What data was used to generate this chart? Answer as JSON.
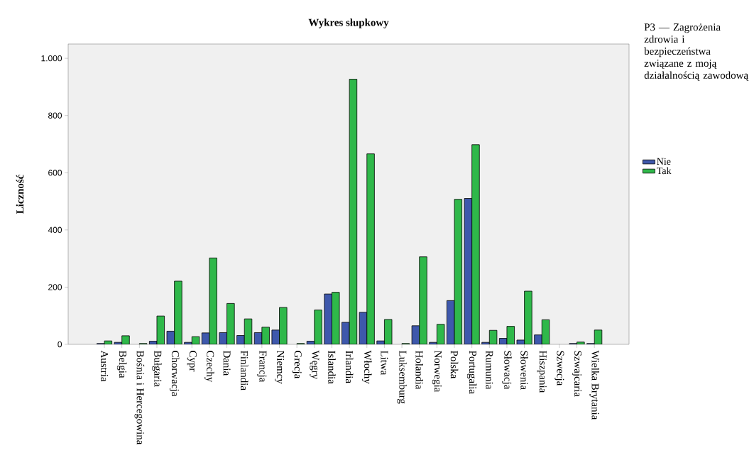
{
  "chart_data": {
    "type": "bar",
    "title": "Wykres słupkowy",
    "ylabel": "Liczność",
    "legend_title": "P3 — Zagrożenia zdrowia i bezpieczeństwa związane z moją działalnością zawodową",
    "categories": [
      "Austria",
      "Belgia",
      "Bośnia i Hercegowina",
      "Bułgaria",
      "Chorwacja",
      "Cypr",
      "Czechy",
      "Dania",
      "Finlandia",
      "Francja",
      "Niemcy",
      "Grecja",
      "Węgry",
      "Islandia",
      "Irlandia",
      "Włochy",
      "Litwa",
      "Luksemburg",
      "Holandia",
      "Norwegia",
      "Polska",
      "Portugalia",
      "Rumunia",
      "Słowacja",
      "Słowenia",
      "Hiszpania",
      "Szwecja",
      "Szwajcaria",
      "Wielka Brytania"
    ],
    "series": [
      {
        "name": "Nie",
        "color": "#3e58ac",
        "values": [
          3,
          7,
          null,
          11,
          46,
          7,
          40,
          41,
          31,
          41,
          50,
          null,
          11,
          176,
          77,
          112,
          12,
          null,
          65,
          7,
          153,
          510,
          7,
          21,
          15,
          33,
          null,
          3,
          3
        ]
      },
      {
        "name": "Tak",
        "color": "#2fb84a",
        "values": [
          12,
          30,
          3,
          99,
          221,
          27,
          302,
          143,
          89,
          60,
          129,
          3,
          120,
          182,
          927,
          666,
          87,
          3,
          306,
          70,
          507,
          698,
          49,
          63,
          186,
          86,
          null,
          8,
          50
        ]
      }
    ],
    "ylim": [
      0,
      1050
    ],
    "yticks": [
      0,
      200,
      400,
      600,
      800,
      {
        "value": 1000,
        "label": "1.000"
      }
    ],
    "legend": "right"
  }
}
